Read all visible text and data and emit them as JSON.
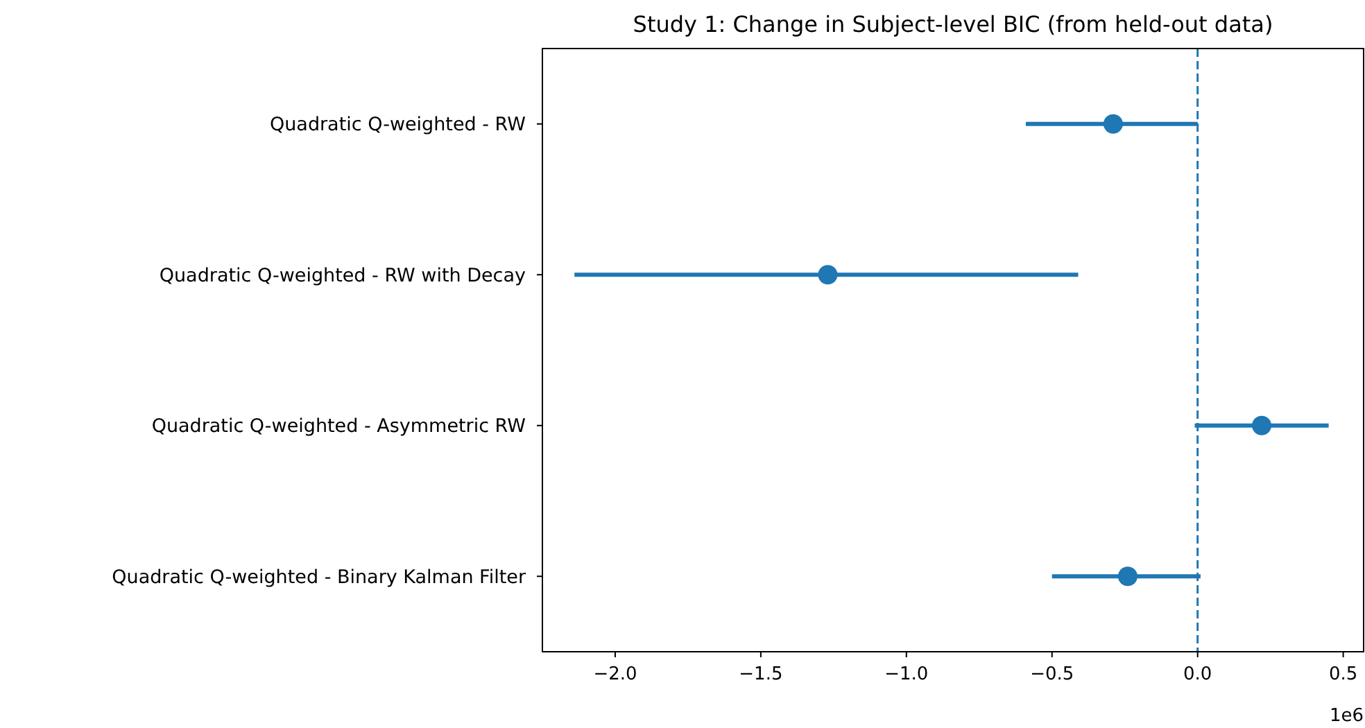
{
  "chart_data": {
    "type": "scatter",
    "orientation": "horizontal",
    "title": "Study 1: Change in Subject-level BIC (from held-out data)",
    "categories": [
      "Quadratic Q-weighted - RW",
      "Quadratic Q-weighted - RW with Decay",
      "Quadratic Q-weighted - Asymmetric RW",
      "Quadratic Q-weighted - Binary Kalman Filter"
    ],
    "values": [
      -0.29,
      -1.27,
      0.22,
      -0.24
    ],
    "errors": [
      [
        -0.59,
        0.0
      ],
      [
        -2.14,
        -0.41
      ],
      [
        -0.01,
        0.45
      ],
      [
        -0.5,
        0.01
      ]
    ],
    "color": "#1f77b4",
    "marker": "circle",
    "xlim": [
      -2.25,
      0.57
    ],
    "xticks": [
      {
        "value": -2,
        "label": "−2.0"
      },
      {
        "value": -1.5,
        "label": "−1.5"
      },
      {
        "value": -1,
        "label": "−1.0"
      },
      {
        "value": -0.5,
        "label": "−0.5"
      },
      {
        "value": 0,
        "label": "0.0"
      },
      {
        "value": 0.5,
        "label": "0.5"
      }
    ],
    "ref_lines": [
      {
        "axis": "x",
        "value": 0,
        "color": "#1f77b4",
        "line_style": "dashed"
      }
    ],
    "annotations": [
      "1e6"
    ],
    "grid": false
  }
}
